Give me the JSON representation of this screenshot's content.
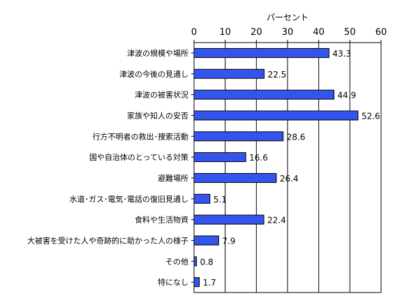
{
  "chart_data": {
    "type": "bar",
    "orientation": "horizontal",
    "axis_title": "パーセント",
    "categories": [
      "津波の規模や場所",
      "津波の今後の見通し",
      "津波の被害状況",
      "家族や知人の安否",
      "行方不明者の救出･捜索活動",
      "国や自治体のとっている対策",
      "避難場所",
      "水道･ガス･電気･電話の復旧見通し",
      "食料や生活物資",
      "大被害を受けた人や奇跡的に助かった人の様子",
      "その他",
      "特になし"
    ],
    "values": [
      43.3,
      22.5,
      44.9,
      52.6,
      28.6,
      16.6,
      26.4,
      5.1,
      22.4,
      7.9,
      0.8,
      1.7
    ],
    "value_labels": [
      "43.3",
      "22.5",
      "44.9",
      "52.6",
      "28.6",
      "16.6",
      "26.4",
      "5.1",
      "22.4",
      "7.9",
      "0.8",
      "1.7"
    ],
    "xlim": [
      0,
      60
    ],
    "ticks": [
      0,
      10,
      20,
      30,
      40,
      50,
      60
    ],
    "tick_labels": [
      "0",
      "10",
      "20",
      "30",
      "40",
      "50",
      "60"
    ],
    "grid": true,
    "legend": "none",
    "bar_color": "#3355ee"
  }
}
